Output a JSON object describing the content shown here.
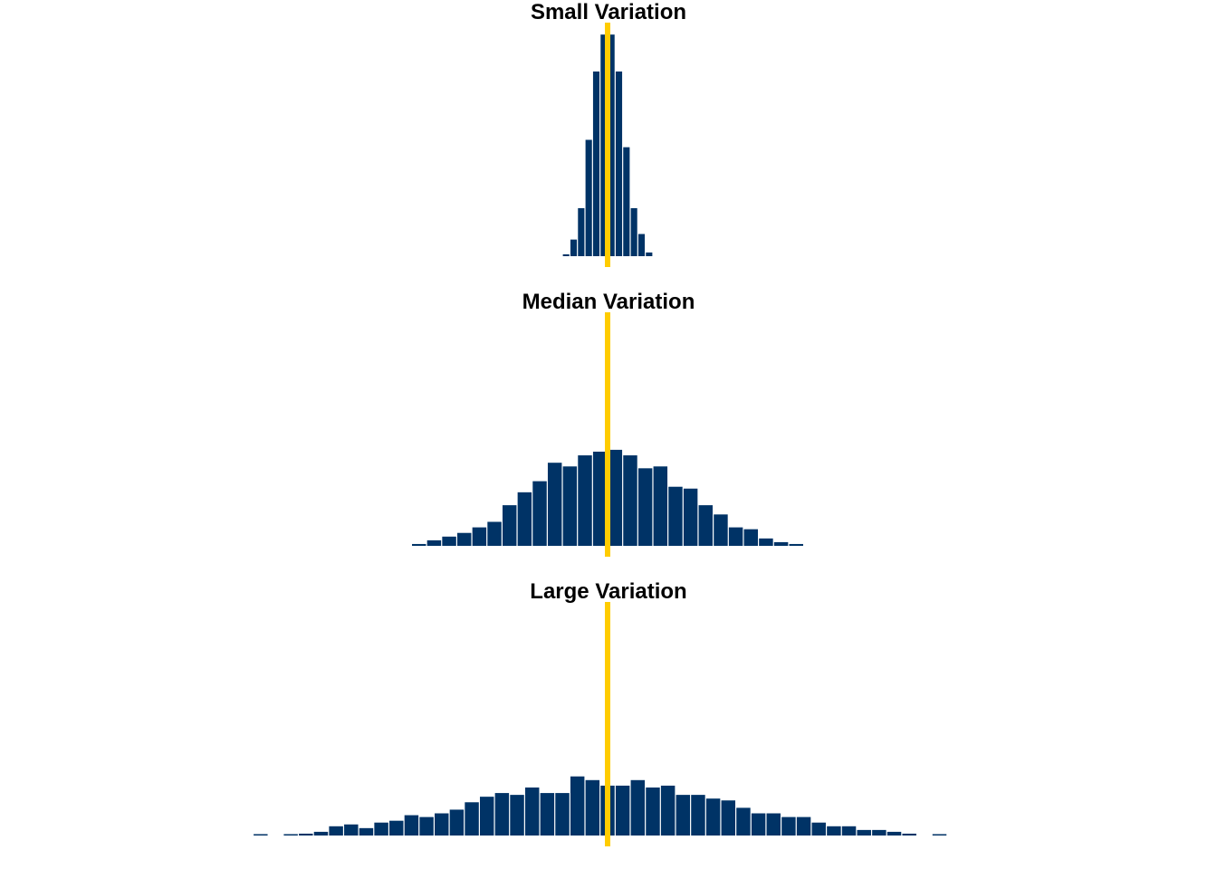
{
  "colors": {
    "bar": "#003366",
    "mean_line": "#FFCC00",
    "background": "#FFFFFF"
  },
  "chart_data": [
    {
      "type": "bar",
      "title": "Small Variation",
      "xlabel": "",
      "ylabel": "",
      "grid": false,
      "axes_visible": false,
      "mean_line_x": 0,
      "xlim": [
        -15,
        15
      ],
      "ylim": [
        0,
        125
      ],
      "bins": [
        {
          "x": -5.5,
          "count": 1
        },
        {
          "x": -4.5,
          "count": 9
        },
        {
          "x": -3.5,
          "count": 26
        },
        {
          "x": -2.5,
          "count": 63
        },
        {
          "x": -1.5,
          "count": 100
        },
        {
          "x": -0.5,
          "count": 120
        },
        {
          "x": 0.5,
          "count": 120
        },
        {
          "x": 1.5,
          "count": 100
        },
        {
          "x": 2.5,
          "count": 59
        },
        {
          "x": 3.5,
          "count": 26
        },
        {
          "x": 4.5,
          "count": 12
        },
        {
          "x": 5.5,
          "count": 2
        }
      ]
    },
    {
      "type": "bar",
      "title": "Median Variation",
      "xlabel": "",
      "ylabel": "",
      "grid": false,
      "axes_visible": false,
      "mean_line_x": 0,
      "xlim": [
        -15,
        15
      ],
      "ylim": [
        0,
        125
      ],
      "bins": [
        {
          "x": -25,
          "count": 1
        },
        {
          "x": -23,
          "count": 3
        },
        {
          "x": -21,
          "count": 5
        },
        {
          "x": -19,
          "count": 7
        },
        {
          "x": -17,
          "count": 10
        },
        {
          "x": -15,
          "count": 13
        },
        {
          "x": -13,
          "count": 22
        },
        {
          "x": -11,
          "count": 29
        },
        {
          "x": -9,
          "count": 35
        },
        {
          "x": -7,
          "count": 45
        },
        {
          "x": -5,
          "count": 43
        },
        {
          "x": -3,
          "count": 49
        },
        {
          "x": -1,
          "count": 51
        },
        {
          "x": 1,
          "count": 52
        },
        {
          "x": 3,
          "count": 49
        },
        {
          "x": 5,
          "count": 42
        },
        {
          "x": 7,
          "count": 43
        },
        {
          "x": 9,
          "count": 32
        },
        {
          "x": 11,
          "count": 31
        },
        {
          "x": 13,
          "count": 22
        },
        {
          "x": 15,
          "count": 17
        },
        {
          "x": 17,
          "count": 10
        },
        {
          "x": 19,
          "count": 9
        },
        {
          "x": 21,
          "count": 4
        },
        {
          "x": 23,
          "count": 2
        },
        {
          "x": 25,
          "count": 1
        }
      ]
    },
    {
      "type": "bar",
      "title": "Large Variation",
      "xlabel": "",
      "ylabel": "",
      "grid": false,
      "axes_visible": false,
      "mean_line_x": 0,
      "xlim": [
        -15,
        15
      ],
      "ylim": [
        0,
        125
      ],
      "bins": [
        {
          "x": -46,
          "count": 0.4
        },
        {
          "x": -42,
          "count": 0.6
        },
        {
          "x": -40,
          "count": 1
        },
        {
          "x": -38,
          "count": 2
        },
        {
          "x": -36,
          "count": 5
        },
        {
          "x": -34,
          "count": 6
        },
        {
          "x": -32,
          "count": 4
        },
        {
          "x": -30,
          "count": 7
        },
        {
          "x": -28,
          "count": 8
        },
        {
          "x": -26,
          "count": 11
        },
        {
          "x": -24,
          "count": 10
        },
        {
          "x": -22,
          "count": 12
        },
        {
          "x": -20,
          "count": 14
        },
        {
          "x": -18,
          "count": 18
        },
        {
          "x": -16,
          "count": 21
        },
        {
          "x": -14,
          "count": 23
        },
        {
          "x": -12,
          "count": 22
        },
        {
          "x": -10,
          "count": 26
        },
        {
          "x": -8,
          "count": 23
        },
        {
          "x": -6,
          "count": 23
        },
        {
          "x": -4,
          "count": 32
        },
        {
          "x": -2,
          "count": 30
        },
        {
          "x": 0,
          "count": 27
        },
        {
          "x": 2,
          "count": 27
        },
        {
          "x": 4,
          "count": 30
        },
        {
          "x": 6,
          "count": 26
        },
        {
          "x": 8,
          "count": 27
        },
        {
          "x": 10,
          "count": 22
        },
        {
          "x": 12,
          "count": 22
        },
        {
          "x": 14,
          "count": 20
        },
        {
          "x": 16,
          "count": 19
        },
        {
          "x": 18,
          "count": 15
        },
        {
          "x": 20,
          "count": 12
        },
        {
          "x": 22,
          "count": 12
        },
        {
          "x": 24,
          "count": 10
        },
        {
          "x": 26,
          "count": 10
        },
        {
          "x": 28,
          "count": 7
        },
        {
          "x": 30,
          "count": 5
        },
        {
          "x": 32,
          "count": 5
        },
        {
          "x": 34,
          "count": 3
        },
        {
          "x": 36,
          "count": 3
        },
        {
          "x": 38,
          "count": 2
        },
        {
          "x": 40,
          "count": 1
        },
        {
          "x": 44,
          "count": 0.4
        }
      ]
    }
  ]
}
